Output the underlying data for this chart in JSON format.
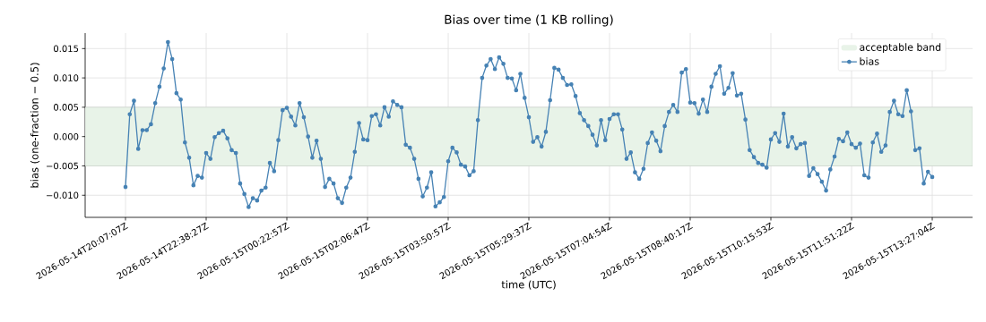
{
  "chart_data": {
    "type": "line",
    "title": "Bias over time (1 KB rolling)",
    "xlabel": "time (UTC)",
    "ylabel": "bias (one-fraction − 0.5)",
    "categories": [
      "2026-05-14T20:07:07Z",
      null,
      null,
      null,
      null,
      null,
      null,
      null,
      null,
      null,
      null,
      null,
      null,
      null,
      null,
      null,
      null,
      null,
      null,
      "2026-05-14T22:38:27Z",
      null,
      null,
      null,
      null,
      null,
      null,
      null,
      null,
      null,
      null,
      null,
      null,
      null,
      null,
      null,
      null,
      null,
      null,
      "2026-05-15T00:22:57Z",
      null,
      null,
      null,
      null,
      null,
      null,
      null,
      null,
      null,
      null,
      null,
      null,
      null,
      null,
      null,
      null,
      null,
      null,
      "2026-05-15T02:06:47Z",
      null,
      null,
      null,
      null,
      null,
      null,
      null,
      null,
      null,
      null,
      null,
      null,
      null,
      null,
      null,
      null,
      null,
      null,
      "2026-05-15T03:50:57Z",
      null,
      null,
      null,
      null,
      null,
      null,
      null,
      null,
      null,
      null,
      null,
      null,
      null,
      null,
      null,
      null,
      null,
      null,
      "2026-05-15T05:29:37Z",
      null,
      null,
      null,
      null,
      null,
      null,
      null,
      null,
      null,
      null,
      null,
      null,
      null,
      null,
      null,
      null,
      null,
      null,
      "2026-05-15T07:04:54Z",
      null,
      null,
      null,
      null,
      null,
      null,
      null,
      null,
      null,
      null,
      null,
      null,
      null,
      null,
      null,
      null,
      null,
      null,
      "2026-05-15T08:40:17Z",
      null,
      null,
      null,
      null,
      null,
      null,
      null,
      null,
      null,
      null,
      null,
      null,
      null,
      null,
      null,
      null,
      null,
      null,
      "2026-05-15T10:15:53Z",
      null,
      null,
      null,
      null,
      null,
      null,
      null,
      null,
      null,
      null,
      null,
      null,
      null,
      null,
      null,
      null,
      null,
      null,
      "2026-05-15T11:51:22Z",
      null,
      null,
      null,
      null,
      null,
      null,
      null,
      null,
      null,
      null,
      null,
      null,
      null,
      null,
      null,
      null,
      null,
      null,
      "2026-05-15T13:27:04Z"
    ],
    "series": [
      {
        "name": "bias",
        "color": "#4682b4",
        "values": [
          -0.0086,
          0.0038,
          0.0061,
          -0.0021,
          0.0011,
          0.0011,
          0.0021,
          0.0057,
          0.0085,
          0.0116,
          0.0161,
          0.0132,
          0.0074,
          0.0063,
          -0.001,
          -0.0036,
          -0.0083,
          -0.0067,
          -0.007,
          -0.0028,
          -0.0038,
          -0.0001,
          0.0006,
          0.001,
          -0.0003,
          -0.0023,
          -0.0028,
          -0.008,
          -0.0098,
          -0.012,
          -0.0105,
          -0.0109,
          -0.0092,
          -0.0087,
          -0.0045,
          -0.0059,
          -0.0006,
          0.0045,
          0.0049,
          0.0034,
          0.0019,
          0.0057,
          0.0033,
          0.0,
          -0.0036,
          -0.0007,
          -0.0038,
          -0.0086,
          -0.0072,
          -0.008,
          -0.0105,
          -0.0113,
          -0.0087,
          -0.007,
          -0.0026,
          0.0023,
          -0.0005,
          -0.0006,
          0.0035,
          0.0038,
          0.0019,
          0.005,
          0.0034,
          0.006,
          0.0054,
          0.005,
          -0.0014,
          -0.0019,
          -0.0038,
          -0.0072,
          -0.0102,
          -0.0087,
          -0.0061,
          -0.0119,
          -0.0112,
          -0.0103,
          -0.0042,
          -0.0019,
          -0.0027,
          -0.0048,
          -0.0051,
          -0.0066,
          -0.0059,
          0.0028,
          0.01,
          0.0121,
          0.0132,
          0.0115,
          0.0135,
          0.0124,
          0.01,
          0.0099,
          0.0079,
          0.0107,
          0.0066,
          0.0033,
          -0.0009,
          -0.0001,
          -0.0017,
          0.0008,
          0.0062,
          0.0117,
          0.0114,
          0.01,
          0.0088,
          0.0089,
          0.0069,
          0.004,
          0.0028,
          0.0018,
          0.0003,
          -0.0015,
          0.0028,
          -0.0006,
          0.003,
          0.0038,
          0.0038,
          0.0012,
          -0.0038,
          -0.0027,
          -0.0061,
          -0.0072,
          -0.0055,
          -0.0011,
          0.0007,
          -0.0007,
          -0.0025,
          0.0018,
          0.0042,
          0.0054,
          0.0042,
          0.0109,
          0.0115,
          0.0058,
          0.0057,
          0.0039,
          0.0063,
          0.0042,
          0.0085,
          0.0107,
          0.012,
          0.0073,
          0.0083,
          0.0108,
          0.007,
          0.0073,
          0.0029,
          -0.0023,
          -0.0035,
          -0.0045,
          -0.0048,
          -0.0053,
          -0.0005,
          0.0006,
          -0.0009,
          0.0039,
          -0.0017,
          -0.0001,
          -0.002,
          -0.0013,
          -0.0011,
          -0.0067,
          -0.0054,
          -0.0064,
          -0.0077,
          -0.0092,
          -0.0056,
          -0.0034,
          -0.0004,
          -0.0008,
          0.0007,
          -0.0013,
          -0.0019,
          -0.0012,
          -0.0066,
          -0.007,
          -0.001,
          0.0005,
          -0.0026,
          -0.0015,
          0.0042,
          0.0061,
          0.0038,
          0.0035,
          0.0079,
          0.0043,
          -0.0023,
          -0.002,
          -0.008,
          -0.006,
          -0.0069
        ]
      }
    ],
    "bands": [
      {
        "axis": "y",
        "from": -0.005,
        "to": 0.005,
        "label": "acceptable band",
        "color": "#e8f3e8"
      }
    ],
    "ylim": [
      -0.01377,
      0.01764
    ],
    "yticks": [
      {
        "value": -0.01,
        "label": "−0.010"
      },
      {
        "value": -0.005,
        "label": "−0.005"
      },
      {
        "value": 0,
        "label": "0.000"
      },
      {
        "value": 0.005,
        "label": "0.005"
      },
      {
        "value": 0.01,
        "label": "0.010"
      },
      {
        "value": 0.015,
        "label": "0.015"
      }
    ],
    "grid": true,
    "legend": "top right",
    "marker": "circle",
    "line_style": "solid"
  }
}
